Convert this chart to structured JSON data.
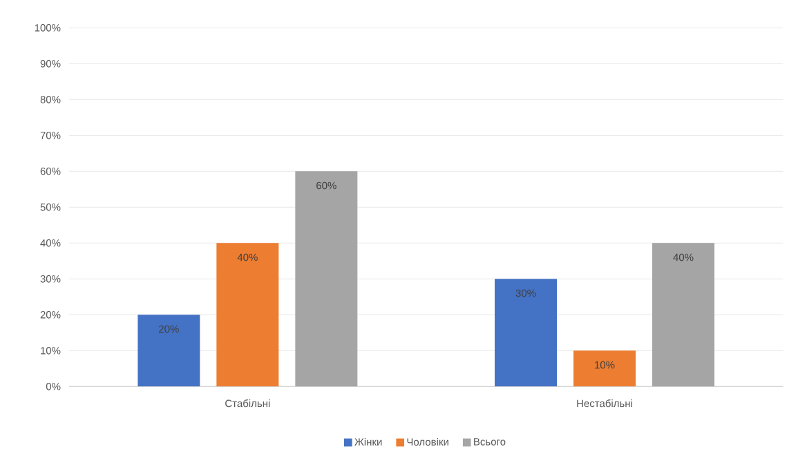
{
  "chart_data": {
    "type": "bar",
    "categories": [
      "Стабільні",
      "Нестабільні"
    ],
    "series": [
      {
        "name": "Жінки",
        "color": "#4472c4",
        "values": [
          20,
          30
        ],
        "value_labels": [
          "20%",
          "30%"
        ]
      },
      {
        "name": "Чоловіки",
        "color": "#ed7d31",
        "values": [
          40,
          10
        ],
        "value_labels": [
          "40%",
          "10%"
        ]
      },
      {
        "name": "Всього",
        "color": "#a5a5a5",
        "values": [
          60,
          40
        ],
        "value_labels": [
          "60%",
          "40%"
        ]
      }
    ],
    "ylim": [
      0,
      100
    ],
    "yticks": [
      {
        "value": 0,
        "label": "0%"
      },
      {
        "value": 10,
        "label": "10%"
      },
      {
        "value": 20,
        "label": "20%"
      },
      {
        "value": 30,
        "label": "30%"
      },
      {
        "value": 40,
        "label": "40%"
      },
      {
        "value": 50,
        "label": "50%"
      },
      {
        "value": 60,
        "label": "60%"
      },
      {
        "value": 70,
        "label": "70%"
      },
      {
        "value": 80,
        "label": "80%"
      },
      {
        "value": 90,
        "label": "90%"
      },
      {
        "value": 100,
        "label": "100%"
      }
    ],
    "grid": "y",
    "legend": "bottom"
  }
}
